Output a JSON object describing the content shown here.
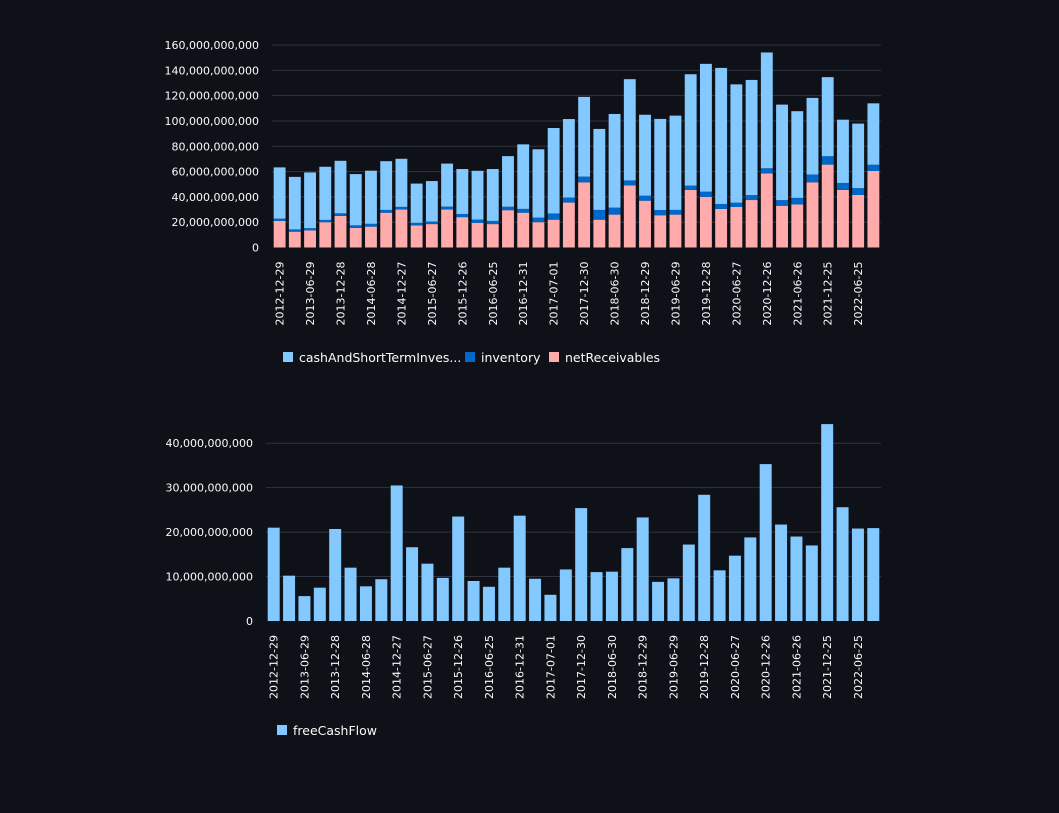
{
  "colors": {
    "background": "#0e1117",
    "cash": "#83c9ff",
    "inventory": "#0068c9",
    "receivables": "#ffabab",
    "fcf": "#83c9ff",
    "grid": "#31333f",
    "text": "#fafafa"
  },
  "chart_data": [
    {
      "type": "bar",
      "stacked": true,
      "title": "",
      "xlabel": "",
      "ylabel": "",
      "ylim": [
        0,
        160000000000
      ],
      "yticks": [
        "0",
        "20,000,000,000",
        "40,000,000,000",
        "60,000,000,000",
        "80,000,000,000",
        "100,000,000,000",
        "120,000,000,000",
        "140,000,000,000",
        "160,000,000,000"
      ],
      "xtick_labels": [
        "2012-12-29",
        "2013-06-29",
        "2013-12-28",
        "2014-06-28",
        "2014-12-27",
        "2015-06-27",
        "2015-12-26",
        "2016-06-25",
        "2016-12-31",
        "2017-07-01",
        "2017-12-30",
        "2018-06-30",
        "2018-12-29",
        "2019-06-29",
        "2019-12-28",
        "2020-06-27",
        "2020-12-26",
        "2021-06-26",
        "2021-12-25",
        "2022-06-25"
      ],
      "bar_count": 40,
      "legend_position": "bottom-left",
      "legend": [
        "cashAndShortTermInves...",
        "inventory",
        "netReceivables"
      ],
      "series": [
        {
          "name": "cashAndShortTermInves...",
          "values": [
            40.5,
            41.5,
            44.0,
            42.0,
            41.5,
            40.5,
            42.0,
            38.5,
            38.0,
            31.0,
            32.0,
            34.0,
            35.5,
            38.5,
            41.0,
            40.0,
            51.0,
            54.0,
            67.5,
            62.0,
            63.0,
            64.0,
            74.0,
            80.0,
            64.0,
            72.0,
            74.5,
            88.0,
            101.0,
            107.5,
            93.5,
            91.0,
            91.5,
            75.5,
            68.5,
            60.5,
            62.5,
            50.0,
            51.0,
            48.5
          ]
        },
        {
          "name": "inventory",
          "values": [
            1.8,
            1.8,
            1.8,
            1.8,
            2.0,
            2.0,
            2.2,
            2.2,
            2.1,
            2.0,
            2.0,
            2.3,
            2.5,
            2.6,
            2.5,
            2.7,
            3.0,
            3.6,
            4.9,
            4.0,
            4.5,
            7.7,
            5.5,
            4.0,
            3.9,
            4.1,
            3.7,
            3.4,
            4.1,
            3.9,
            3.4,
            3.9,
            4.1,
            4.4,
            5.2,
            6.2,
            6.6,
            5.5,
            5.4,
            4.9
          ]
        },
        {
          "name": "netReceivables",
          "values": [
            21.0,
            12.5,
            13.5,
            20.0,
            25.0,
            15.5,
            16.5,
            27.5,
            30.0,
            17.5,
            18.5,
            30.0,
            24.0,
            19.5,
            18.5,
            29.5,
            27.5,
            20.0,
            22.0,
            35.5,
            51.5,
            22.0,
            26.0,
            49.0,
            37.0,
            25.5,
            26.0,
            45.5,
            40.0,
            30.5,
            32.0,
            37.5,
            58.5,
            33.0,
            34.0,
            51.5,
            65.5,
            45.5,
            41.5,
            60.5
          ]
        }
      ],
      "value_unit_multiplier": 1000000000
    },
    {
      "type": "bar",
      "title": "",
      "xlabel": "",
      "ylabel": "",
      "ylim": [
        0,
        45000000000
      ],
      "yticks": [
        "0",
        "10,000,000,000",
        "20,000,000,000",
        "30,000,000,000",
        "40,000,000,000"
      ],
      "xtick_labels": [
        "2012-12-29",
        "2013-06-29",
        "2013-12-28",
        "2014-06-28",
        "2014-12-27",
        "2015-06-27",
        "2015-12-26",
        "2016-06-25",
        "2016-12-31",
        "2017-07-01",
        "2017-12-30",
        "2018-06-30",
        "2018-12-29",
        "2019-06-29",
        "2019-12-28",
        "2020-06-27",
        "2020-12-26",
        "2021-06-26",
        "2021-12-25",
        "2022-06-25"
      ],
      "bar_count": 40,
      "legend_position": "bottom-left",
      "legend": [
        "freeCashFlow"
      ],
      "series": [
        {
          "name": "freeCashFlow",
          "values": [
            21.0,
            10.2,
            5.6,
            7.5,
            20.7,
            12.0,
            7.8,
            9.4,
            30.5,
            16.6,
            12.9,
            9.7,
            23.5,
            9.0,
            7.7,
            12.0,
            23.7,
            9.5,
            5.9,
            11.6,
            25.4,
            11.0,
            11.1,
            16.4,
            23.3,
            8.8,
            9.6,
            17.2,
            28.4,
            11.4,
            14.7,
            18.8,
            35.3,
            21.7,
            19.0,
            17.0,
            44.3,
            25.6,
            20.8,
            20.9
          ]
        }
      ],
      "value_unit_multiplier": 1000000000
    }
  ]
}
